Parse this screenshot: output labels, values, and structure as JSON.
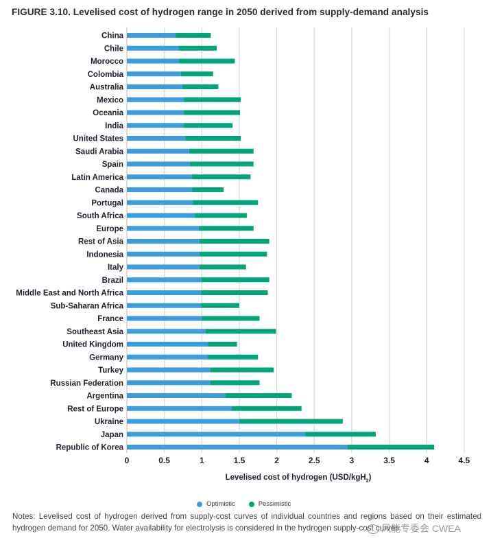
{
  "figure": {
    "title": "FIGURE 3.10. Levelised cost of hydrogen range in 2050 derived from supply-demand analysis",
    "xlabel_main": "Levelised cost of hydrogen (USD/kgH",
    "xlabel_sub": "2",
    "xlabel_end": ")",
    "notes": "Notes: Levelised cost of hydrogen derived from supply-cost curves of individual countries and regions based on their estimated hydrogen demand for 2050. Water availability for electrolysis is considered in the hydrogen supply-cost curves.",
    "watermark": "风能专委会 CWEA"
  },
  "legend": [
    {
      "label": "Optimistic",
      "color": "#3d9ddc"
    },
    {
      "label": "Pessimistic",
      "color": "#00a679"
    }
  ],
  "chart_data": {
    "type": "bar",
    "orientation": "horizontal",
    "stacked_range": true,
    "title": "FIGURE 3.10. Levelised cost of hydrogen range in 2050 derived from supply-demand analysis",
    "xlabel": "Levelised cost of hydrogen (USD/kgH2)",
    "ylabel": "",
    "xlim": [
      0,
      4.5
    ],
    "xticks": [
      "0",
      "0.5",
      "1",
      "1.5",
      "2",
      "2.5",
      "3",
      "3.5",
      "4",
      "4.5"
    ],
    "grid": true,
    "legend_position": "bottom",
    "categories": [
      "China",
      "Chile",
      "Morocco",
      "Colombia",
      "Australia",
      "Mexico",
      "Oceania",
      "India",
      "United States",
      "Saudi Arabia",
      "Spain",
      "Latin America",
      "Canada",
      "Portugal",
      "South Africa",
      "Europe",
      "Rest of Asia",
      "Indonesia",
      "Italy",
      "Brazil",
      "Middle East and North Africa",
      "Sub-Saharan Africa",
      "France",
      "Southeast Asia",
      "United Kingdom",
      "Germany",
      "Turkey",
      "Russian Federation",
      "Argentina",
      "Rest of Europe",
      "Ukraine",
      "Japan",
      "Republic of Korea"
    ],
    "series": [
      {
        "name": "Optimistic",
        "color": "#3d9ddc",
        "values": [
          0.65,
          0.69,
          0.7,
          0.72,
          0.74,
          0.76,
          0.76,
          0.76,
          0.78,
          0.83,
          0.84,
          0.87,
          0.87,
          0.88,
          0.91,
          0.96,
          0.97,
          0.97,
          0.97,
          0.99,
          0.99,
          0.99,
          1.0,
          1.05,
          1.08,
          1.08,
          1.11,
          1.11,
          1.31,
          1.4,
          1.5,
          2.38,
          2.94
        ]
      },
      {
        "name": "Pessimistic",
        "color": "#00a679",
        "values": [
          1.12,
          1.2,
          1.44,
          1.15,
          1.22,
          1.52,
          1.51,
          1.41,
          1.52,
          1.69,
          1.69,
          1.65,
          1.29,
          1.75,
          1.6,
          1.69,
          1.9,
          1.87,
          1.59,
          1.9,
          1.88,
          1.5,
          1.77,
          1.99,
          1.47,
          1.75,
          1.96,
          1.77,
          2.2,
          2.33,
          2.88,
          3.32,
          4.1
        ]
      }
    ]
  }
}
